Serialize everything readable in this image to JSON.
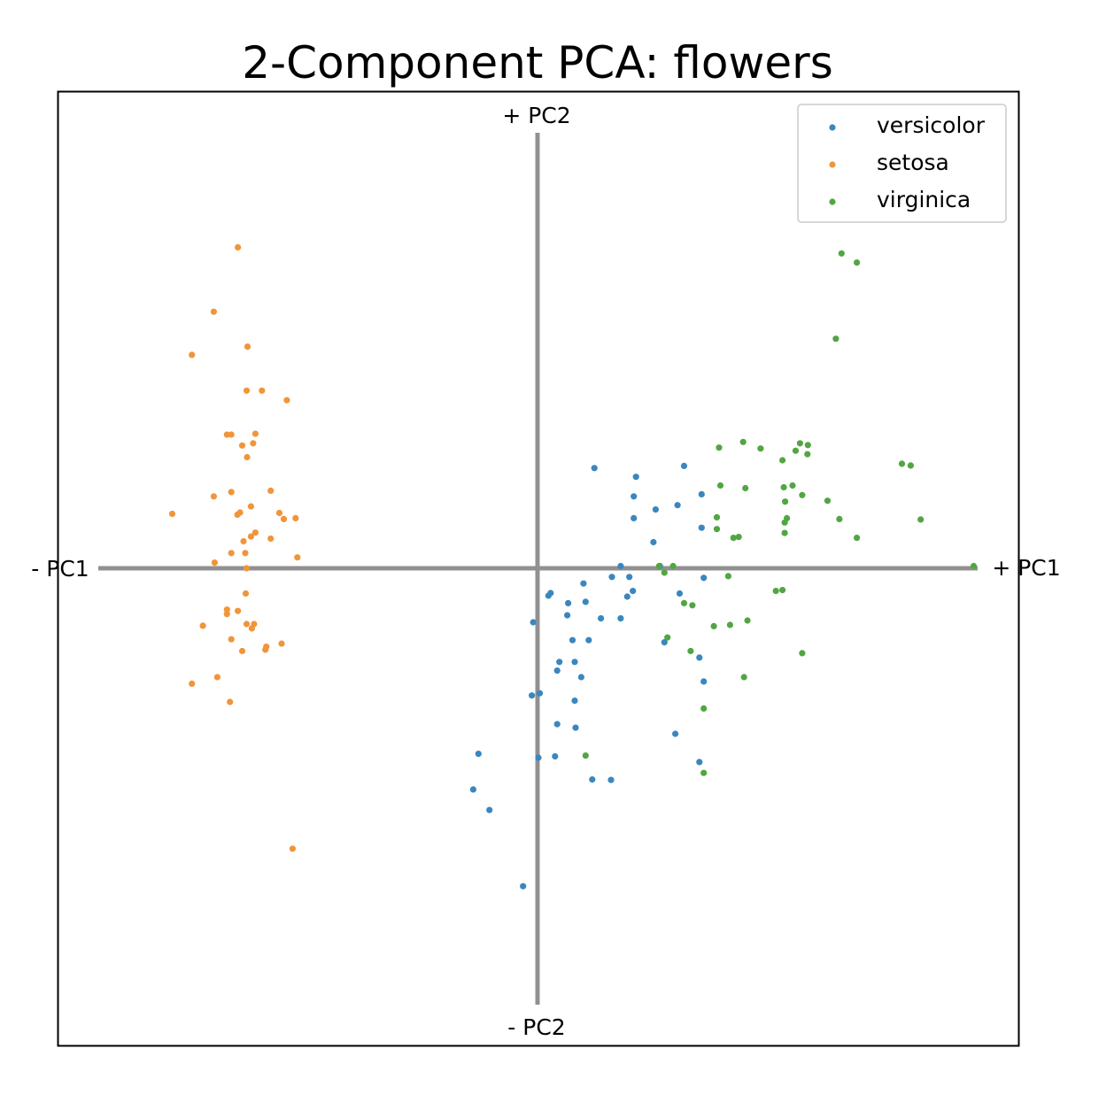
{
  "chart_data": {
    "type": "scatter",
    "title": "2-Component PCA: flowers",
    "xlabel": "",
    "ylabel": "",
    "xlim": [
      -1,
      1
    ],
    "ylim": [
      -1,
      1
    ],
    "grid": false,
    "axis_labels": {
      "x_positive": "+ PC1",
      "x_negative": "- PC1",
      "y_positive": "+ PC2",
      "y_negative": "- PC2"
    },
    "legend": {
      "placement": "top-right"
    },
    "series": [
      {
        "name": "versicolor",
        "color": "#3a87bf",
        "points": [
          [
            0.13,
            0.23
          ],
          [
            0.225,
            0.21
          ],
          [
            0.335,
            0.235
          ],
          [
            0.375,
            0.17
          ],
          [
            0.32,
            0.145
          ],
          [
            0.27,
            0.135
          ],
          [
            0.22,
            0.165
          ],
          [
            0.22,
            0.115
          ],
          [
            0.375,
            0.093
          ],
          [
            0.265,
            0.06
          ],
          [
            0.19,
            0.005
          ],
          [
            0.28,
            0.005
          ],
          [
            0.17,
            -0.02
          ],
          [
            0.21,
            -0.02
          ],
          [
            0.38,
            -0.022
          ],
          [
            0.105,
            -0.035
          ],
          [
            0.218,
            -0.052
          ],
          [
            0.03,
            -0.057
          ],
          [
            0.025,
            -0.063
          ],
          [
            0.205,
            -0.065
          ],
          [
            0.325,
            -0.058
          ],
          [
            0.11,
            -0.077
          ],
          [
            0.07,
            -0.08
          ],
          [
            0.068,
            -0.108
          ],
          [
            0.145,
            -0.115
          ],
          [
            0.19,
            -0.115
          ],
          [
            -0.01,
            -0.124
          ],
          [
            0.08,
            -0.165
          ],
          [
            0.117,
            -0.165
          ],
          [
            0.29,
            -0.17
          ],
          [
            0.05,
            -0.215
          ],
          [
            0.085,
            -0.215
          ],
          [
            0.37,
            -0.205
          ],
          [
            0.045,
            -0.235
          ],
          [
            0.1,
            -0.25
          ],
          [
            0.38,
            -0.26
          ],
          [
            0.005,
            -0.287
          ],
          [
            -0.013,
            -0.292
          ],
          [
            0.085,
            -0.304
          ],
          [
            0.045,
            -0.358
          ],
          [
            0.087,
            -0.366
          ],
          [
            0.315,
            -0.38
          ],
          [
            -0.135,
            -0.426
          ],
          [
            0.04,
            -0.432
          ],
          [
            0.002,
            -0.435
          ],
          [
            0.37,
            -0.445
          ],
          [
            0.125,
            -0.485
          ],
          [
            0.168,
            -0.486
          ],
          [
            -0.147,
            -0.508
          ],
          [
            -0.11,
            -0.555
          ],
          [
            -0.033,
            -0.73
          ]
        ]
      },
      {
        "name": "setosa",
        "color": "#f0953a",
        "points": [
          [
            -0.685,
            0.737
          ],
          [
            -0.74,
            0.589
          ],
          [
            -0.663,
            0.509
          ],
          [
            -0.79,
            0.49
          ],
          [
            -0.665,
            0.408
          ],
          [
            -0.63,
            0.408
          ],
          [
            -0.573,
            0.386
          ],
          [
            -0.645,
            0.309
          ],
          [
            -0.71,
            0.307
          ],
          [
            -0.7,
            0.307
          ],
          [
            -0.65,
            0.287
          ],
          [
            -0.675,
            0.282
          ],
          [
            -0.664,
            0.255
          ],
          [
            -0.61,
            0.178
          ],
          [
            -0.74,
            0.165
          ],
          [
            -0.7,
            0.175
          ],
          [
            -0.655,
            0.142
          ],
          [
            -0.68,
            0.128
          ],
          [
            -0.686,
            0.123
          ],
          [
            -0.59,
            0.127
          ],
          [
            -0.58,
            0.113
          ],
          [
            -0.553,
            0.115
          ],
          [
            -0.835,
            0.125
          ],
          [
            -0.645,
            0.082
          ],
          [
            -0.655,
            0.073
          ],
          [
            -0.61,
            0.068
          ],
          [
            -0.672,
            0.062
          ],
          [
            -0.7,
            0.035
          ],
          [
            -0.668,
            0.035
          ],
          [
            -0.549,
            0.025
          ],
          [
            -0.738,
            0.013
          ],
          [
            -0.665,
            0.0
          ],
          [
            -0.667,
            -0.058
          ],
          [
            -0.71,
            -0.095
          ],
          [
            -0.685,
            -0.098
          ],
          [
            -0.71,
            -0.105
          ],
          [
            -0.765,
            -0.132
          ],
          [
            -0.665,
            -0.128
          ],
          [
            -0.648,
            -0.128
          ],
          [
            -0.653,
            -0.138
          ],
          [
            -0.7,
            -0.163
          ],
          [
            -0.585,
            -0.173
          ],
          [
            -0.62,
            -0.18
          ],
          [
            -0.622,
            -0.187
          ],
          [
            -0.675,
            -0.19
          ],
          [
            -0.732,
            -0.25
          ],
          [
            -0.79,
            -0.265
          ],
          [
            -0.703,
            -0.307
          ],
          [
            -0.56,
            -0.644
          ]
        ]
      },
      {
        "name": "virginica",
        "color": "#52a642",
        "points": [
          [
            0.695,
            0.723
          ],
          [
            0.73,
            0.702
          ],
          [
            0.682,
            0.527
          ],
          [
            0.47,
            0.29
          ],
          [
            0.415,
            0.277
          ],
          [
            0.51,
            0.275
          ],
          [
            0.6,
            0.287
          ],
          [
            0.59,
            0.27
          ],
          [
            0.618,
            0.283
          ],
          [
            0.617,
            0.262
          ],
          [
            0.56,
            0.248
          ],
          [
            0.833,
            0.24
          ],
          [
            0.853,
            0.236
          ],
          [
            0.418,
            0.19
          ],
          [
            0.475,
            0.184
          ],
          [
            0.563,
            0.186
          ],
          [
            0.583,
            0.19
          ],
          [
            0.605,
            0.168
          ],
          [
            0.663,
            0.155
          ],
          [
            0.566,
            0.153
          ],
          [
            0.41,
            0.117
          ],
          [
            0.57,
            0.115
          ],
          [
            0.565,
            0.105
          ],
          [
            0.69,
            0.113
          ],
          [
            0.876,
            0.112
          ],
          [
            0.41,
            0.09
          ],
          [
            0.565,
            0.081
          ],
          [
            0.46,
            0.072
          ],
          [
            0.448,
            0.07
          ],
          [
            0.73,
            0.07
          ],
          [
            0.31,
            0.005
          ],
          [
            0.278,
            0.005
          ],
          [
            0.997,
            0.005
          ],
          [
            0.29,
            -0.01
          ],
          [
            0.436,
            -0.018
          ],
          [
            0.545,
            -0.052
          ],
          [
            0.56,
            -0.05
          ],
          [
            0.335,
            -0.08
          ],
          [
            0.354,
            -0.085
          ],
          [
            0.48,
            -0.12
          ],
          [
            0.44,
            -0.13
          ],
          [
            0.403,
            -0.133
          ],
          [
            0.297,
            -0.159
          ],
          [
            0.35,
            -0.19
          ],
          [
            0.605,
            -0.195
          ],
          [
            0.472,
            -0.25
          ],
          [
            0.38,
            -0.322
          ],
          [
            0.11,
            -0.43
          ],
          [
            0.38,
            -0.47
          ]
        ]
      }
    ]
  }
}
